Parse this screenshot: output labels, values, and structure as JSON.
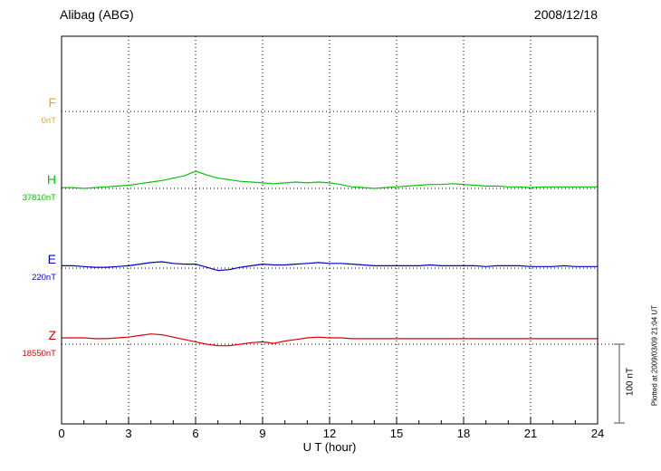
{
  "header": {
    "station": "Alibag (ABG)",
    "date": "2008/12/18"
  },
  "axis": {
    "xlabel": "U T (hour)",
    "tick_labels": [
      0,
      3,
      6,
      9,
      12,
      15,
      18,
      21,
      24
    ],
    "xmin": 0,
    "xmax": 24
  },
  "scale_bar": {
    "label": "100 nT",
    "nT": 100
  },
  "footer_note": "Plotted at 2009/03/09 21:04 UT",
  "chart_data": {
    "type": "line",
    "title": "Alibag (ABG) magnetogram 2008/12/18",
    "xlabel": "U T (hour)",
    "x_range": [
      0,
      24
    ],
    "x_start": 0,
    "x_step_hours": 0.5,
    "grid": "dotted-every-3-hours",
    "scale_nT_per_division": 100,
    "series": [
      {
        "name": "F",
        "baseline_label": "0nT",
        "baseline_nT": 0,
        "color": "#FFA500",
        "values": []
      },
      {
        "name": "H",
        "baseline_label": "37810nT",
        "baseline_nT": 37810,
        "color": "#00C800",
        "values": [
          1,
          1,
          0,
          1,
          2,
          3,
          4,
          6,
          8,
          10,
          13,
          16,
          22,
          17,
          13,
          11,
          9,
          8,
          7,
          6,
          7,
          8,
          7,
          8,
          7,
          5,
          2,
          1,
          0,
          1,
          2,
          3,
          4,
          5,
          5,
          6,
          5,
          4,
          3,
          3,
          2,
          2,
          1,
          2,
          2,
          2,
          2,
          2,
          2
        ]
      },
      {
        "name": "E",
        "baseline_label": "220nT",
        "baseline_nT": 220,
        "color": "#0000CC",
        "values": [
          3,
          3,
          2,
          1,
          1,
          2,
          3,
          5,
          7,
          8,
          6,
          5,
          5,
          1,
          -3,
          -2,
          1,
          3,
          5,
          4,
          4,
          5,
          6,
          7,
          6,
          6,
          5,
          4,
          3,
          3,
          3,
          3,
          3,
          4,
          3,
          3,
          3,
          3,
          2,
          3,
          3,
          3,
          2,
          2,
          2,
          3,
          2,
          2,
          2
        ]
      },
      {
        "name": "Z",
        "baseline_label": "18550nT",
        "baseline_nT": 18550,
        "color": "#DD0000",
        "values": [
          8,
          8,
          8,
          7,
          7,
          8,
          9,
          11,
          13,
          12,
          9,
          6,
          3,
          0,
          -2,
          -2,
          0,
          2,
          3,
          1,
          4,
          6,
          8,
          9,
          8,
          8,
          7,
          7,
          7,
          7,
          7,
          7,
          7,
          7,
          7,
          7,
          7,
          7,
          7,
          7,
          7,
          7,
          7,
          7,
          7,
          7,
          7,
          7,
          7
        ]
      }
    ]
  }
}
